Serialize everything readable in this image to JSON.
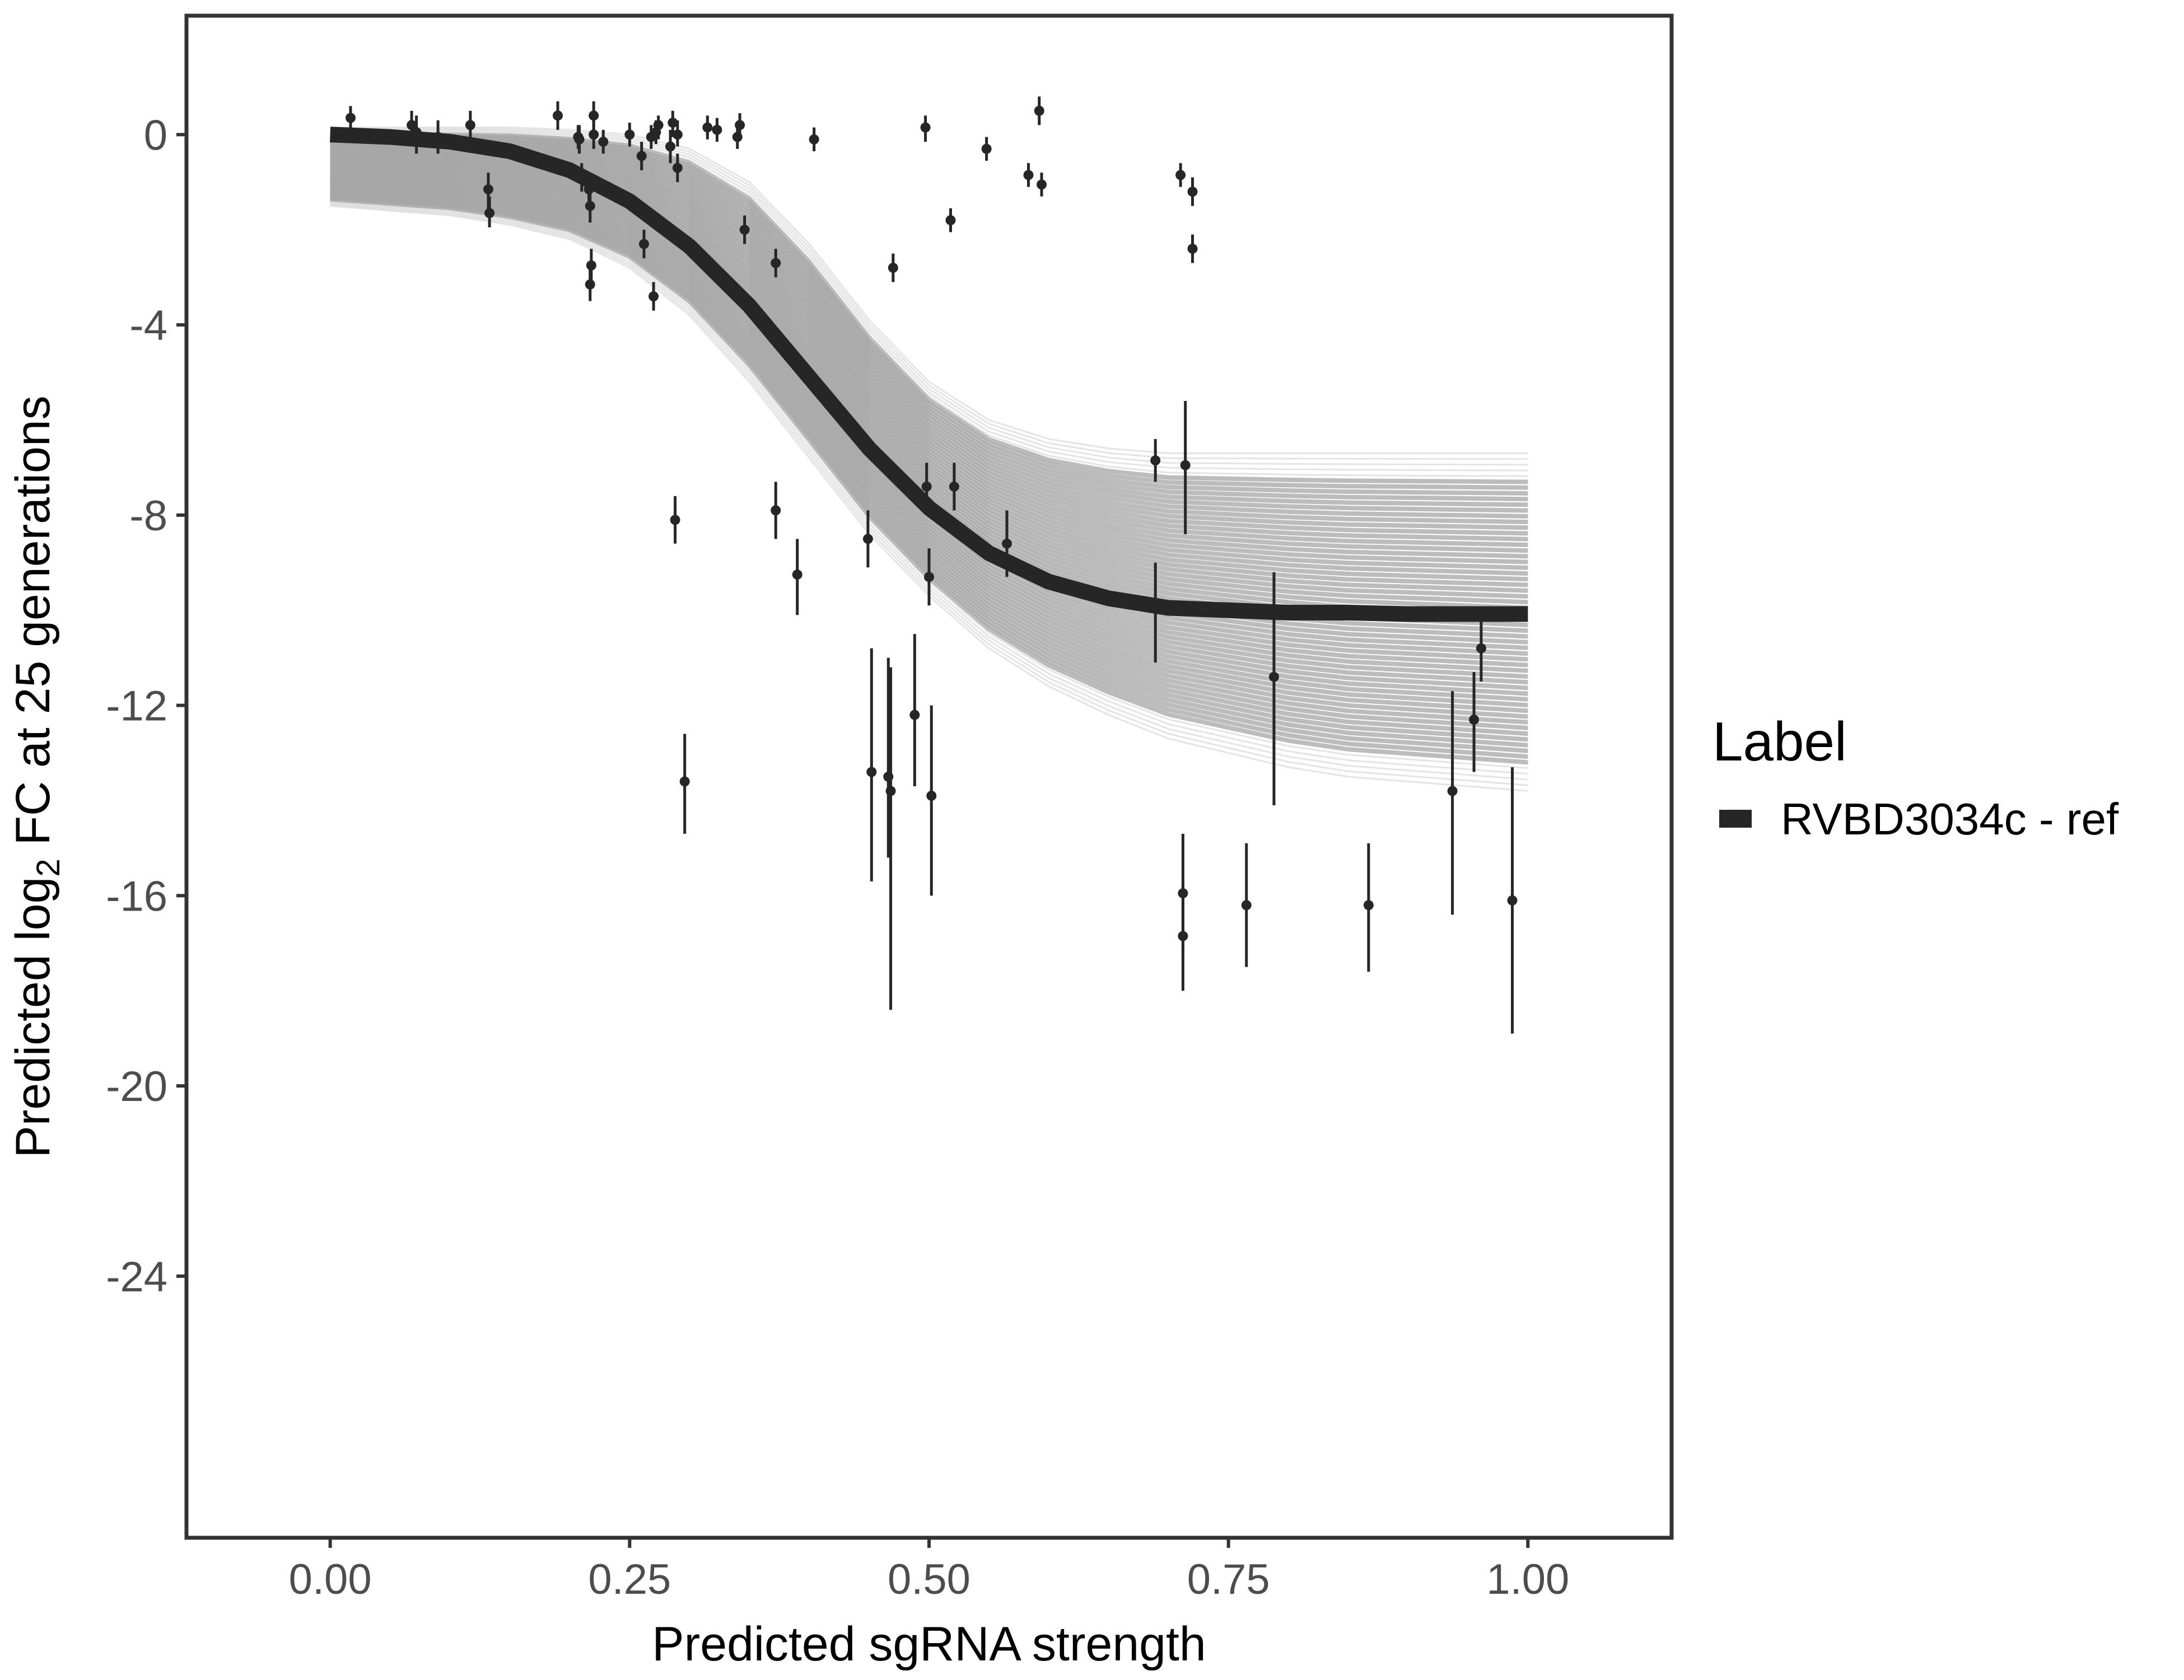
{
  "chart_data": {
    "type": "line",
    "title": "",
    "xlabel": "Predicted sgRNA strength",
    "ylabel_prefix": "Predicted  log",
    "ylabel_sub": "2",
    "ylabel_suffix": " FC at 25 generations",
    "xlim": [
      -0.12,
      1.12
    ],
    "ylim": [
      -29.5,
      2.5
    ],
    "x_ticks": [
      0,
      0.25,
      0.5,
      0.75,
      1
    ],
    "x_tick_labels": [
      "0.00",
      "0.25",
      "0.50",
      "0.75",
      "1.00"
    ],
    "y_ticks": [
      0,
      -4,
      -8,
      -12,
      -16,
      -20,
      -24
    ],
    "y_tick_labels": [
      "0",
      "-4",
      "-8",
      "-12",
      "-16",
      "-20",
      "-24"
    ],
    "grid": false,
    "legend": {
      "title": "Label",
      "placement": "right",
      "entries": [
        {
          "label": "RVBD3034c - ref",
          "color": "#262626"
        }
      ]
    },
    "colors": {
      "fit_line": "#262626",
      "posterior_lines": "#a6a6a6",
      "points": "#262626",
      "panel_border": "#333333"
    },
    "fit_curve": {
      "name": "RVBD3034c - ref",
      "x": [
        0,
        0.05,
        0.1,
        0.15,
        0.2,
        0.25,
        0.3,
        0.35,
        0.4,
        0.45,
        0.5,
        0.55,
        0.6,
        0.65,
        0.7,
        0.75,
        0.8,
        0.85,
        0.9,
        0.95,
        1.0
      ],
      "y": [
        0.0,
        -0.05,
        -0.15,
        -0.35,
        -0.75,
        -1.4,
        -2.35,
        -3.6,
        -5.1,
        -6.6,
        -7.85,
        -8.8,
        -9.4,
        -9.75,
        -9.95,
        -10.0,
        -10.05,
        -10.05,
        -10.08,
        -10.08,
        -10.08
      ]
    },
    "posterior_band": {
      "x": [
        0,
        0.05,
        0.1,
        0.15,
        0.2,
        0.25,
        0.3,
        0.35,
        0.4,
        0.45,
        0.5,
        0.55,
        0.6,
        0.65,
        0.7,
        0.75,
        0.8,
        0.85,
        0.9,
        0.95,
        1.0
      ],
      "y_upper": [
        0.15,
        0.15,
        0.15,
        0.15,
        0.1,
        0.0,
        -0.3,
        -1.0,
        -2.3,
        -3.9,
        -5.2,
        -6.0,
        -6.4,
        -6.6,
        -6.7,
        -6.7,
        -6.7,
        -6.7,
        -6.7,
        -6.7,
        -6.7
      ],
      "y_lower": [
        -1.5,
        -1.6,
        -1.7,
        -1.9,
        -2.2,
        -2.8,
        -3.8,
        -5.2,
        -6.8,
        -8.4,
        -9.7,
        -10.8,
        -11.6,
        -12.2,
        -12.7,
        -13.0,
        -13.3,
        -13.5,
        -13.6,
        -13.7,
        -13.8
      ]
    },
    "points": [
      {
        "x": 0.017,
        "y": 0.35,
        "lo": 0.1,
        "hi": 0.6
      },
      {
        "x": 0.068,
        "y": 0.2,
        "lo": -0.1,
        "hi": 0.5
      },
      {
        "x": 0.072,
        "y": 0.05,
        "lo": -0.4,
        "hi": 0.4
      },
      {
        "x": 0.09,
        "y": -0.05,
        "lo": -0.4,
        "hi": 0.3
      },
      {
        "x": 0.117,
        "y": 0.2,
        "lo": -0.1,
        "hi": 0.5
      },
      {
        "x": 0.132,
        "y": -1.15,
        "lo": -1.6,
        "hi": -0.8
      },
      {
        "x": 0.133,
        "y": -1.65,
        "lo": -1.95,
        "hi": -1.3
      },
      {
        "x": 0.19,
        "y": 0.4,
        "lo": 0.1,
        "hi": 0.7
      },
      {
        "x": 0.207,
        "y": -0.05,
        "lo": -0.3,
        "hi": 0.2
      },
      {
        "x": 0.208,
        "y": -0.1,
        "lo": -0.4,
        "hi": 0.2
      },
      {
        "x": 0.21,
        "y": -0.9,
        "lo": -1.2,
        "hi": -0.6
      },
      {
        "x": 0.216,
        "y": -1.15,
        "lo": -1.4,
        "hi": -0.9
      },
      {
        "x": 0.217,
        "y": -1.5,
        "lo": -1.85,
        "hi": -1.2
      },
      {
        "x": 0.218,
        "y": -2.75,
        "lo": -3.1,
        "hi": -2.4
      },
      {
        "x": 0.217,
        "y": -3.15,
        "lo": -3.5,
        "hi": -2.8
      },
      {
        "x": 0.22,
        "y": 0.4,
        "lo": 0.1,
        "hi": 0.7
      },
      {
        "x": 0.22,
        "y": 0.0,
        "lo": -0.3,
        "hi": 0.3
      },
      {
        "x": 0.228,
        "y": -0.15,
        "lo": -0.4,
        "hi": 0.1
      },
      {
        "x": 0.25,
        "y": 0.0,
        "lo": -0.25,
        "hi": 0.25
      },
      {
        "x": 0.26,
        "y": -0.45,
        "lo": -0.75,
        "hi": -0.15
      },
      {
        "x": 0.262,
        "y": -2.3,
        "lo": -2.6,
        "hi": -2.0
      },
      {
        "x": 0.268,
        "y": -0.05,
        "lo": -0.3,
        "hi": 0.2
      },
      {
        "x": 0.272,
        "y": 0.05,
        "lo": -0.2,
        "hi": 0.3
      },
      {
        "x": 0.274,
        "y": 0.2,
        "lo": -0.1,
        "hi": 0.4
      },
      {
        "x": 0.27,
        "y": -3.4,
        "lo": -3.7,
        "hi": -3.1
      },
      {
        "x": 0.284,
        "y": -0.25,
        "lo": -0.6,
        "hi": 0.1
      },
      {
        "x": 0.286,
        "y": 0.25,
        "lo": -0.05,
        "hi": 0.5
      },
      {
        "x": 0.29,
        "y": 0.0,
        "lo": -0.25,
        "hi": 0.3
      },
      {
        "x": 0.29,
        "y": -0.7,
        "lo": -1.0,
        "hi": -0.4
      },
      {
        "x": 0.288,
        "y": -8.1,
        "lo": -8.6,
        "hi": -7.6
      },
      {
        "x": 0.296,
        "y": -13.6,
        "lo": -14.7,
        "hi": -12.6
      },
      {
        "x": 0.315,
        "y": 0.15,
        "lo": -0.1,
        "hi": 0.4
      },
      {
        "x": 0.323,
        "y": 0.1,
        "lo": -0.15,
        "hi": 0.35
      },
      {
        "x": 0.34,
        "y": -0.05,
        "lo": -0.3,
        "hi": 0.2
      },
      {
        "x": 0.342,
        "y": 0.2,
        "lo": -0.05,
        "hi": 0.45
      },
      {
        "x": 0.346,
        "y": -2.0,
        "lo": -2.3,
        "hi": -1.7
      },
      {
        "x": 0.372,
        "y": -2.7,
        "lo": -3.0,
        "hi": -2.4
      },
      {
        "x": 0.372,
        "y": -7.9,
        "lo": -8.5,
        "hi": -7.3
      },
      {
        "x": 0.39,
        "y": -9.25,
        "lo": -10.1,
        "hi": -8.5
      },
      {
        "x": 0.404,
        "y": -0.1,
        "lo": -0.35,
        "hi": 0.15
      },
      {
        "x": 0.449,
        "y": -8.5,
        "lo": -9.1,
        "hi": -7.9
      },
      {
        "x": 0.452,
        "y": -13.4,
        "lo": -15.7,
        "hi": -10.8
      },
      {
        "x": 0.466,
        "y": -13.5,
        "lo": -15.2,
        "hi": -11.0
      },
      {
        "x": 0.468,
        "y": -13.8,
        "lo": -18.4,
        "hi": -11.2
      },
      {
        "x": 0.47,
        "y": -2.8,
        "lo": -3.1,
        "hi": -2.5
      },
      {
        "x": 0.488,
        "y": -12.2,
        "lo": -13.7,
        "hi": -10.5
      },
      {
        "x": 0.497,
        "y": 0.15,
        "lo": -0.15,
        "hi": 0.4
      },
      {
        "x": 0.498,
        "y": -7.4,
        "lo": -8.0,
        "hi": -6.9
      },
      {
        "x": 0.5,
        "y": -9.3,
        "lo": -9.9,
        "hi": -8.7
      },
      {
        "x": 0.502,
        "y": -13.9,
        "lo": -16.0,
        "hi": -12.0
      },
      {
        "x": 0.518,
        "y": -1.8,
        "lo": -2.05,
        "hi": -1.55
      },
      {
        "x": 0.521,
        "y": -7.4,
        "lo": -7.9,
        "hi": -6.9
      },
      {
        "x": 0.548,
        "y": -0.3,
        "lo": -0.55,
        "hi": -0.05
      },
      {
        "x": 0.565,
        "y": -8.6,
        "lo": -9.3,
        "hi": -7.9
      },
      {
        "x": 0.583,
        "y": -0.85,
        "lo": -1.1,
        "hi": -0.6
      },
      {
        "x": 0.592,
        "y": 0.5,
        "lo": 0.2,
        "hi": 0.8
      },
      {
        "x": 0.594,
        "y": -1.05,
        "lo": -1.3,
        "hi": -0.8
      },
      {
        "x": 0.689,
        "y": -6.85,
        "lo": -7.3,
        "hi": -6.4
      },
      {
        "x": 0.689,
        "y": -9.9,
        "lo": -11.1,
        "hi": -9.0
      },
      {
        "x": 0.71,
        "y": -0.85,
        "lo": -1.1,
        "hi": -0.6
      },
      {
        "x": 0.714,
        "y": -6.95,
        "lo": -8.4,
        "hi": -5.6
      },
      {
        "x": 0.712,
        "y": -15.95,
        "lo": -17.3,
        "hi": -14.7
      },
      {
        "x": 0.712,
        "y": -16.85,
        "lo": -18.0,
        "hi": -15.7
      },
      {
        "x": 0.72,
        "y": -1.2,
        "lo": -1.5,
        "hi": -0.9
      },
      {
        "x": 0.72,
        "y": -2.4,
        "lo": -2.7,
        "hi": -2.1
      },
      {
        "x": 0.765,
        "y": -16.2,
        "lo": -17.5,
        "hi": -14.9
      },
      {
        "x": 0.788,
        "y": -11.4,
        "lo": -14.1,
        "hi": -9.2
      },
      {
        "x": 0.867,
        "y": -16.2,
        "lo": -17.6,
        "hi": -14.9
      },
      {
        "x": 0.937,
        "y": -13.8,
        "lo": -16.4,
        "hi": -11.7
      },
      {
        "x": 0.955,
        "y": -12.3,
        "lo": -13.4,
        "hi": -11.3
      },
      {
        "x": 0.961,
        "y": -10.8,
        "lo": -11.5,
        "hi": -10.2
      },
      {
        "x": 0.987,
        "y": -16.1,
        "lo": -18.9,
        "hi": -13.3
      }
    ]
  }
}
